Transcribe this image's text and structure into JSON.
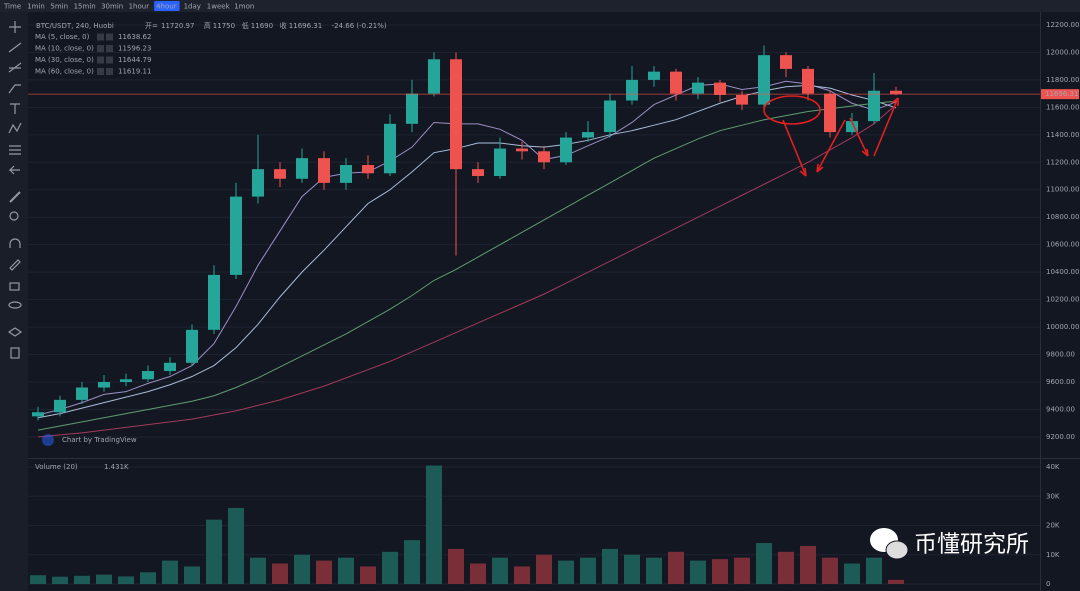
{
  "toolbar": {
    "items": [
      "Time",
      "1min",
      "5min",
      "15min",
      "30min",
      "1hour",
      "4hour",
      "1day",
      "1week",
      "1mon"
    ],
    "active": 6
  },
  "chart_data": {
    "type": "candlestick",
    "title": "BTC/USDT, 240, Huobi",
    "ohlc_labels": [
      "开=",
      "高",
      "低",
      "收"
    ],
    "change": "-24.66 (-0.21%)",
    "open": [
      9350,
      9380,
      9470,
      9560,
      9600,
      9620,
      9680,
      9740,
      9980,
      10380,
      10950,
      11150,
      11080,
      11230,
      11050,
      11180,
      11120,
      11480,
      11700,
      11950,
      11150,
      11100,
      11300,
      11280,
      11200,
      11380,
      11420,
      11650,
      11800,
      11860,
      11700,
      11780,
      11690,
      11620,
      11980,
      11880,
      11700,
      11420,
      11500,
      11720.97
    ],
    "high": [
      9420,
      9500,
      9600,
      9650,
      9660,
      9720,
      9780,
      10020,
      10450,
      11050,
      11400,
      11200,
      11300,
      11280,
      11230,
      11250,
      11550,
      11800,
      12000,
      12000,
      11200,
      11380,
      11350,
      11320,
      11420,
      11500,
      11700,
      11900,
      11900,
      11880,
      11820,
      11800,
      11720,
      12050,
      12000,
      11900,
      11720,
      11560,
      11850,
      11750
    ],
    "low": [
      9320,
      9350,
      9440,
      9530,
      9570,
      9600,
      9650,
      9720,
      9950,
      10350,
      10900,
      11020,
      11050,
      11000,
      11000,
      11080,
      11100,
      11420,
      11680,
      10520,
      11050,
      11080,
      11220,
      11150,
      11180,
      11350,
      11380,
      11620,
      11750,
      11650,
      11660,
      11640,
      11580,
      11600,
      11820,
      11650,
      11380,
      11400,
      11480,
      11690
    ],
    "close": [
      9380,
      9470,
      9560,
      9600,
      9620,
      9680,
      9740,
      9980,
      10380,
      10950,
      11150,
      11080,
      11230,
      11050,
      11180,
      11120,
      11480,
      11700,
      11950,
      11150,
      11100,
      11300,
      11280,
      11200,
      11380,
      11420,
      11650,
      11800,
      11860,
      11700,
      11780,
      11690,
      11620,
      11980,
      11880,
      11700,
      11420,
      11500,
      11720.97,
      11696.31
    ],
    "colors": {
      "up": "#26a69a",
      "down": "#ef5350",
      "volume_up": "#1d5c56",
      "volume_down": "#7a2f38",
      "last_price": "#ef5350"
    },
    "grid": true,
    "ylim": [
      9054,
      12287
    ],
    "yticks": [
      {
        "value": 9200,
        "label": "9200.00"
      },
      {
        "value": 9400,
        "label": "9400.00"
      },
      {
        "value": 9600,
        "label": "9600.00"
      },
      {
        "value": 9800,
        "label": "9800.00"
      },
      {
        "value": 10000,
        "label": "10000.00"
      },
      {
        "value": 10200,
        "label": "10200.00"
      },
      {
        "value": 10400,
        "label": "10400.00"
      },
      {
        "value": 10600,
        "label": "10600.00"
      },
      {
        "value": 10800,
        "label": "10800.00"
      },
      {
        "value": 11000,
        "label": "11000.00"
      },
      {
        "value": 11200,
        "label": "11200.00"
      },
      {
        "value": 11400,
        "label": "11400.00"
      },
      {
        "value": 11600,
        "label": "11600.00"
      },
      {
        "value": 11800,
        "label": "11800.00"
      },
      {
        "value": 12000,
        "label": "12000.00"
      },
      {
        "value": 12200,
        "label": "12200.00"
      }
    ],
    "series": [
      {
        "name": "MA (5, close, 0)",
        "color": "#9d8ec4",
        "values": [
          9360,
          9400,
          9450,
          9510,
          9530,
          9590,
          9640,
          9720,
          9880,
          10150,
          10450,
          10700,
          10950,
          11090,
          11120,
          11130,
          11210,
          11310,
          11490,
          11480,
          11480,
          11440,
          11360,
          11220,
          11250,
          11320,
          11390,
          11490,
          11620,
          11690,
          11760,
          11770,
          11730,
          11750,
          11790,
          11770,
          11720,
          11630,
          11580,
          11638.62
        ]
      },
      {
        "name": "MA (10, close, 0)",
        "color": "#a9bcd8",
        "values": [
          9340,
          9370,
          9410,
          9450,
          9490,
          9530,
          9580,
          9640,
          9720,
          9850,
          10020,
          10220,
          10400,
          10560,
          10730,
          10900,
          11000,
          11130,
          11270,
          11300,
          11340,
          11340,
          11320,
          11310,
          11330,
          11360,
          11400,
          11430,
          11470,
          11510,
          11570,
          11630,
          11680,
          11720,
          11750,
          11760,
          11740,
          11690,
          11650,
          11596.23
        ]
      },
      {
        "name": "MA (30, close, 0)",
        "color": "#5f9e6e",
        "values": [
          9250,
          9280,
          9310,
          9340,
          9370,
          9400,
          9430,
          9460,
          9500,
          9560,
          9630,
          9710,
          9790,
          9870,
          9950,
          10040,
          10130,
          10230,
          10340,
          10420,
          10510,
          10600,
          10690,
          10780,
          10870,
          10960,
          11050,
          11140,
          11230,
          11300,
          11370,
          11430,
          11470,
          11510,
          11540,
          11570,
          11590,
          11610,
          11630,
          11644.79
        ]
      },
      {
        "name": "MA (60, close, 0)",
        "color": "#a33a5c",
        "values": [
          9200,
          9215,
          9230,
          9250,
          9270,
          9290,
          9310,
          9330,
          9360,
          9390,
          9430,
          9470,
          9520,
          9570,
          9630,
          9690,
          9750,
          9820,
          9890,
          9960,
          10030,
          10100,
          10170,
          10240,
          10320,
          10400,
          10480,
          10560,
          10640,
          10720,
          10800,
          10880,
          10960,
          11040,
          11120,
          11200,
          11290,
          11380,
          11480,
          11619.11
        ]
      }
    ],
    "volume": {
      "name": "Volume (20)",
      "label": "1.431K",
      "values": [
        3000,
        2500,
        2800,
        3200,
        2600,
        4000,
        8000,
        6000,
        22000,
        26000,
        9000,
        7000,
        10000,
        8000,
        9000,
        6000,
        11000,
        15000,
        40500,
        12000,
        7000,
        9000,
        6000,
        10000,
        8000,
        9000,
        12000,
        10000,
        9000,
        11000,
        8000,
        8500,
        9000,
        14000,
        11000,
        13000,
        9000,
        7000,
        9000,
        1431
      ],
      "ylim": [
        -2050,
        41710
      ],
      "yticks": [
        0,
        {
          "value": 10000,
          "label": "10K"
        },
        {
          "value": 20000,
          "label": "20K"
        },
        {
          "value": 30000,
          "label": "30K"
        },
        {
          "value": 40000,
          "label": "40K"
        }
      ]
    },
    "credit": "Chart by TradingView"
  },
  "watermark": "币懂研究所"
}
